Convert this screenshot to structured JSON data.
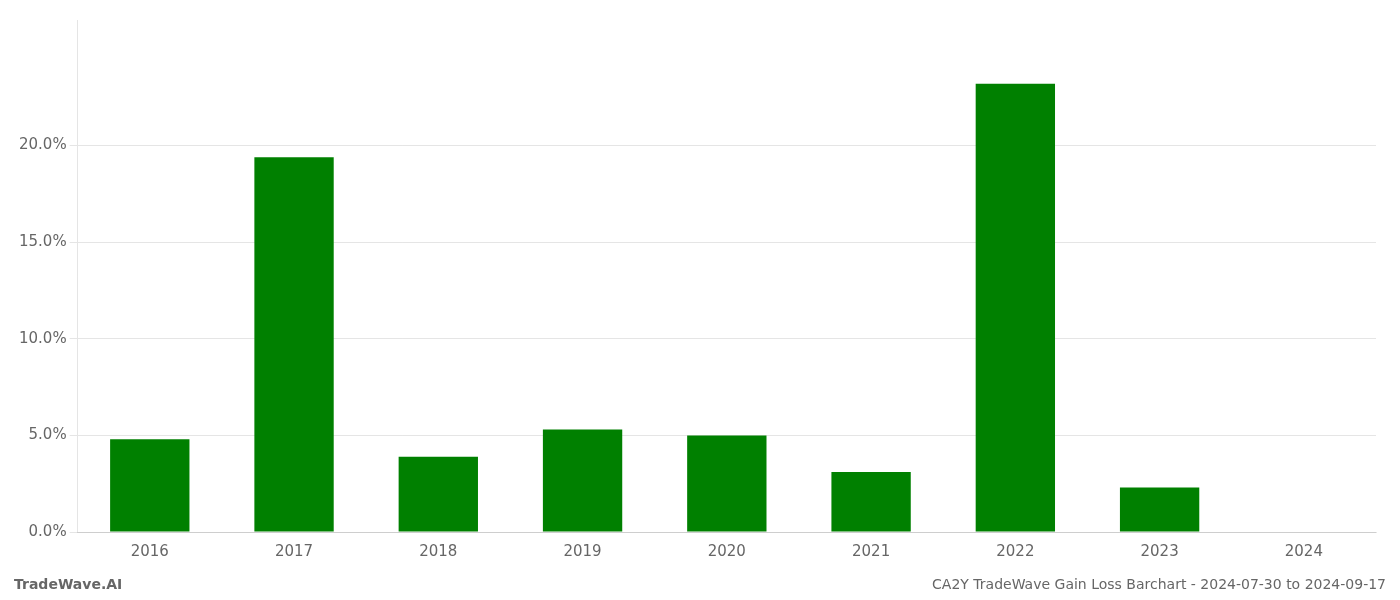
{
  "chart_data": {
    "type": "bar",
    "categories": [
      "2016",
      "2017",
      "2018",
      "2019",
      "2020",
      "2021",
      "2022",
      "2023",
      "2024"
    ],
    "values": [
      0.048,
      0.194,
      0.039,
      0.053,
      0.05,
      0.031,
      0.232,
      0.023,
      0.0
    ],
    "color": "#008000",
    "ylim": [
      0,
      0.265
    ],
    "yticks": [
      {
        "value": 0.0,
        "label": "0.0%"
      },
      {
        "value": 0.05,
        "label": "5.0%"
      },
      {
        "value": 0.1,
        "label": "10.0%"
      },
      {
        "value": 0.15,
        "label": "15.0%"
      },
      {
        "value": 0.2,
        "label": "20.0%"
      }
    ],
    "grid": true,
    "annotations": [
      "TradeWave.AI",
      "CA2Y TradeWave Gain Loss Barchart - 2024-07-30 to 2024-09-17"
    ]
  }
}
